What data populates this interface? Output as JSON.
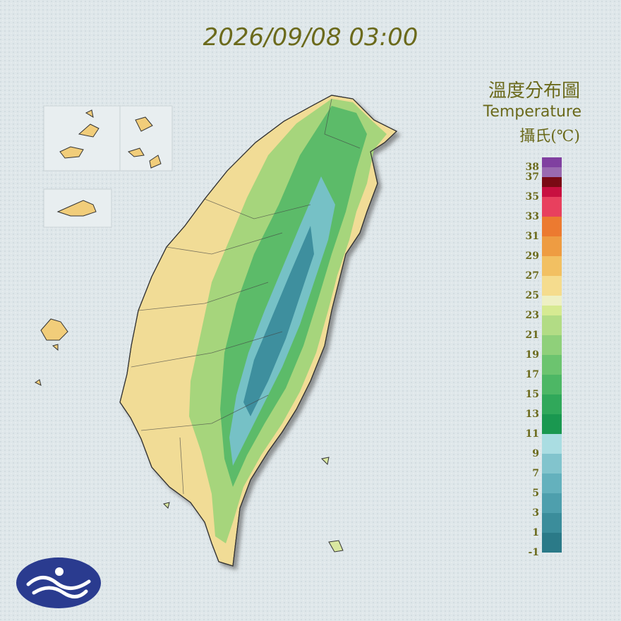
{
  "title": "2026/09/08 03:00",
  "legend": {
    "title": "溫度分布圖",
    "subtitle": "Temperature",
    "unit": "攝氏(℃)",
    "lim": [
      -1,
      39
    ],
    "ticks": [
      38,
      37,
      35,
      33,
      31,
      29,
      27,
      25,
      23,
      21,
      19,
      17,
      15,
      13,
      11,
      9,
      7,
      5,
      3,
      1,
      -1
    ],
    "bands": [
      {
        "from": -1,
        "to": 1,
        "color": "#2b7a88"
      },
      {
        "from": 1,
        "to": 3,
        "color": "#3b8d9b"
      },
      {
        "from": 3,
        "to": 5,
        "color": "#4e9fad"
      },
      {
        "from": 5,
        "to": 7,
        "color": "#64b1bd"
      },
      {
        "from": 7,
        "to": 9,
        "color": "#82c4cd"
      },
      {
        "from": 9,
        "to": 11,
        "color": "#aadde2"
      },
      {
        "from": 11,
        "to": 13,
        "color": "#1a9850"
      },
      {
        "from": 13,
        "to": 15,
        "color": "#30a85a"
      },
      {
        "from": 15,
        "to": 17,
        "color": "#4db765"
      },
      {
        "from": 17,
        "to": 19,
        "color": "#6cc46f"
      },
      {
        "from": 19,
        "to": 21,
        "color": "#8fd07a"
      },
      {
        "from": 21,
        "to": 23,
        "color": "#b2dc85"
      },
      {
        "from": 23,
        "to": 24,
        "color": "#d6ea92"
      },
      {
        "from": 24,
        "to": 25,
        "color": "#eef0c4"
      },
      {
        "from": 25,
        "to": 27,
        "color": "#f5dc8e"
      },
      {
        "from": 27,
        "to": 29,
        "color": "#f2c062"
      },
      {
        "from": 29,
        "to": 31,
        "color": "#ee9c42"
      },
      {
        "from": 31,
        "to": 33,
        "color": "#ec7a30"
      },
      {
        "from": 33,
        "to": 35,
        "color": "#e8405e"
      },
      {
        "from": 35,
        "to": 36,
        "color": "#c81040"
      },
      {
        "from": 36,
        "to": 37,
        "color": "#7a0a14"
      },
      {
        "from": 37,
        "to": 38,
        "color": "#9a6ab0"
      },
      {
        "from": 38,
        "to": 39,
        "color": "#8040a0"
      }
    ]
  }
}
